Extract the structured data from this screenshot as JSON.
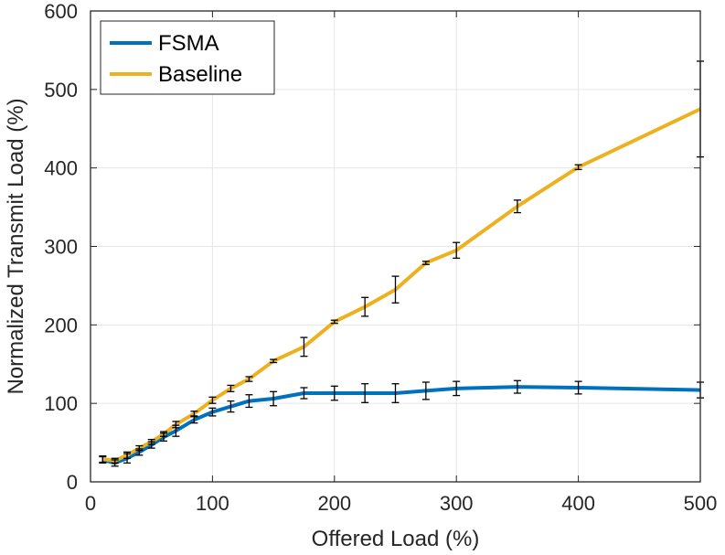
{
  "chart_data": {
    "type": "line",
    "title": "",
    "xlabel": "Offered Load (%)",
    "ylabel": "Normalized Transmit Load (%)",
    "xlim": [
      0,
      500
    ],
    "ylim": [
      0,
      600
    ],
    "xticks": [
      0,
      100,
      200,
      300,
      400,
      500
    ],
    "yticks": [
      0,
      100,
      200,
      300,
      400,
      500,
      600
    ],
    "grid": true,
    "legend_position": "top-left",
    "x": [
      10,
      20,
      30,
      40,
      50,
      60,
      70,
      85,
      100,
      115,
      130,
      150,
      175,
      200,
      225,
      250,
      275,
      300,
      350,
      400,
      500
    ],
    "series": [
      {
        "name": "FSMA",
        "color": "#0072BD",
        "values": [
          28,
          24,
          30,
          38,
          47,
          57,
          65,
          79,
          89,
          96,
          103,
          106,
          113,
          113,
          113,
          113,
          116,
          119,
          121,
          120,
          117
        ],
        "error": [
          4,
          4,
          6,
          4,
          4,
          5,
          7,
          4,
          5,
          7,
          8,
          9,
          7,
          9,
          12,
          12,
          11,
          9,
          8,
          8,
          10
        ]
      },
      {
        "name": "Baseline",
        "color": "#EDB120",
        "values": [
          29,
          27,
          34,
          43,
          51,
          61,
          73,
          87,
          104,
          119,
          131,
          154,
          172,
          204,
          223,
          245,
          279,
          295,
          351,
          401,
          475
        ],
        "error": [
          4,
          3,
          4,
          3,
          3,
          3,
          4,
          3,
          4,
          4,
          3,
          2,
          12,
          2,
          12,
          17,
          2,
          10,
          8,
          3,
          61
        ]
      }
    ]
  }
}
